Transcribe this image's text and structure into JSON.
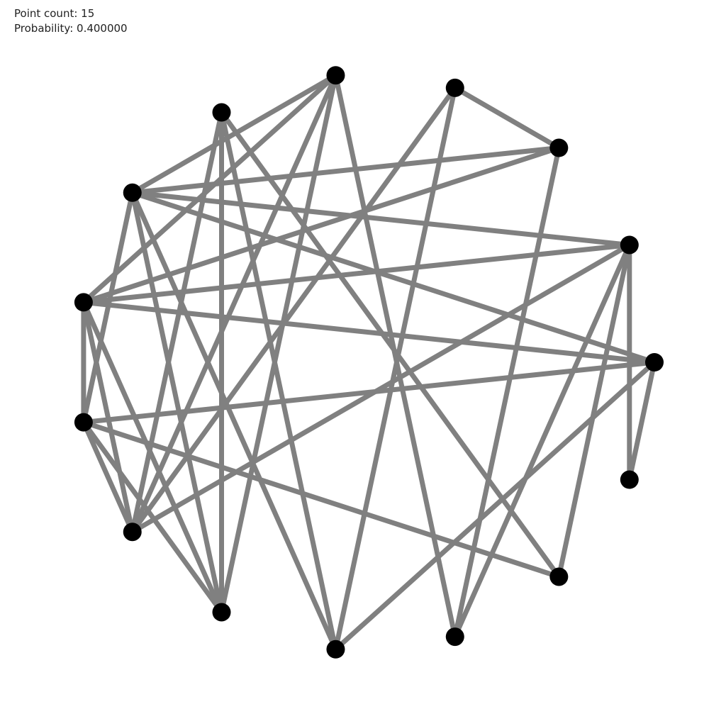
{
  "info": {
    "point_count_text": "Point count: 15",
    "probability_text": "Probability: 0.400000"
  },
  "graph": {
    "node_count": 15,
    "edge_color": "#808080",
    "node_color": "#000000",
    "background": "#ffffff",
    "edges": [
      [
        0,
        7
      ],
      [
        0,
        8
      ],
      [
        0,
        11
      ],
      [
        0,
        14
      ],
      [
        1,
        7
      ],
      [
        1,
        9
      ],
      [
        1,
        12
      ],
      [
        1,
        13
      ],
      [
        1,
        14
      ],
      [
        2,
        3
      ],
      [
        2,
        6
      ],
      [
        2,
        7
      ],
      [
        2,
        12
      ],
      [
        3,
        9
      ],
      [
        3,
        11
      ],
      [
        4,
        7
      ],
      [
        4,
        9
      ],
      [
        4,
        10
      ],
      [
        4,
        12
      ],
      [
        5,
        9
      ],
      [
        5,
        10
      ],
      [
        5,
        11
      ],
      [
        5,
        13
      ],
      [
        6,
        0
      ],
      [
        6,
        1
      ],
      [
        6,
        4
      ],
      [
        6,
        8
      ],
      [
        6,
        10
      ],
      [
        6,
        11
      ],
      [
        7,
        8
      ],
      [
        7,
        9
      ],
      [
        7,
        10
      ],
      [
        8,
        9
      ],
      [
        8,
        10
      ],
      [
        8,
        13
      ]
    ]
  }
}
